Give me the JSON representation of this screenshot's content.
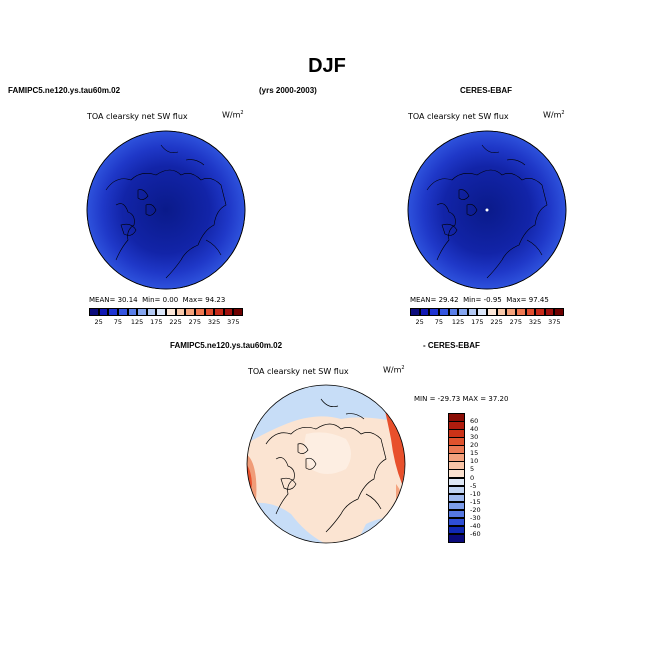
{
  "title": "DJF",
  "header": {
    "left_case": "FAMIPC5.ne120.ys.tau60m.02",
    "years": "(yrs 2000-2003)",
    "right_case": "CERES-EBAF",
    "diff_case": "FAMIPC5.ne120.ys.tau60m.02",
    "diff_minus": "- CERES-EBAF"
  },
  "colors": {
    "background_blue": "#2a3fd0",
    "deep_blue": "#0a1a8a",
    "land": "#1c2fb8",
    "diff_base": "#fbe4d2",
    "diff_pale_blue": "#c7ddf7",
    "diff_red": "#e8502c"
  },
  "chart_data": [
    {
      "type": "heatmap",
      "name": "model",
      "title": "TOA clearsky net SW flux",
      "units": "W/m",
      "units_sup": "2",
      "mean_label": "MEAN=",
      "mean": "30.14",
      "min_label": "Min=",
      "min": "0.00",
      "max_label": "Max=",
      "max": "94.23",
      "colorbar_ticks": [
        "25",
        "75",
        "125",
        "175",
        "225",
        "275",
        "325",
        "375"
      ],
      "colorbar_colors": [
        "#0b0b7c",
        "#1219b4",
        "#1f34d2",
        "#3555e0",
        "#5a7fe8",
        "#85a5ee",
        "#b3c9f3",
        "#dbe6f8",
        "#fce7d8",
        "#f8c8aa",
        "#f4a27c",
        "#ee7852",
        "#e04e30",
        "#c62a1a",
        "#a0100e",
        "#6e0000"
      ]
    },
    {
      "type": "heatmap",
      "name": "observations",
      "title": "TOA clearsky net SW flux",
      "units": "W/m",
      "units_sup": "2",
      "mean_label": "MEAN=",
      "mean": "29.42",
      "min_label": "Min=",
      "min": "-0.95",
      "max_label": "Max=",
      "max": "97.45",
      "colorbar_ticks": [
        "25",
        "75",
        "125",
        "175",
        "225",
        "275",
        "325",
        "375"
      ],
      "colorbar_colors": [
        "#0b0b7c",
        "#1219b4",
        "#1f34d2",
        "#3555e0",
        "#5a7fe8",
        "#85a5ee",
        "#b3c9f3",
        "#dbe6f8",
        "#fce7d8",
        "#f8c8aa",
        "#f4a27c",
        "#ee7852",
        "#e04e30",
        "#c62a1a",
        "#a0100e",
        "#6e0000"
      ]
    },
    {
      "type": "heatmap",
      "name": "difference",
      "title": "TOA clearsky net SW flux",
      "units": "W/m",
      "units_sup": "2",
      "minmax_label": "MIN = -29.73  MAX =  37.20",
      "colorbar_ticks": [
        "60",
        "40",
        "30",
        "20",
        "15",
        "10",
        "5",
        "0",
        "-5",
        "-10",
        "-15",
        "-20",
        "-30",
        "-40",
        "-60"
      ],
      "colorbar_colors": [
        "#8a0d05",
        "#b01c0e",
        "#cc3318",
        "#e0532e",
        "#ec7a55",
        "#f4a27e",
        "#f8c4a6",
        "#fbe1cf",
        "#dfe8f6",
        "#c2d4f2",
        "#9fb9ee",
        "#7d9deb",
        "#5678e2",
        "#2f4fd6",
        "#1028b3",
        "#0a0a7a"
      ]
    }
  ]
}
